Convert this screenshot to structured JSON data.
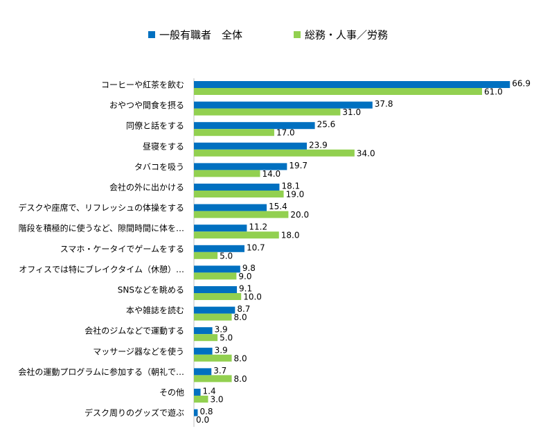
{
  "chart_data": {
    "type": "barh",
    "categories": [
      "コーヒーや紅茶を飲む",
      "おやつや間食を摂る",
      "同僚と話をする",
      "昼寝をする",
      "タバコを吸う",
      "会社の外に出かける",
      "デスクや座席で、リフレッシュの体操をする",
      "階段を積極的に使うなど、隙間時間に体を…",
      "スマホ・ケータイでゲームをする",
      "オフィスでは特にブレイクタイム（休憩）…",
      "SNSなどを眺める",
      "本や雑誌を読む",
      "会社のジムなどで運動する",
      "マッサージ器などを使う",
      "会社の運動プログラムに参加する（朝礼で…",
      "その他",
      "デスク周りのグッズで遊ぶ"
    ],
    "series": [
      {
        "name": "一般有職者　全体",
        "color": "#0070c0",
        "values": [
          66.9,
          37.8,
          25.6,
          23.9,
          19.7,
          18.1,
          15.4,
          11.2,
          10.7,
          9.8,
          9.1,
          8.7,
          3.9,
          3.9,
          3.7,
          1.4,
          0.8
        ],
        "value_labels": [
          "66.9",
          "37.8",
          "25.6",
          "23.9",
          "19.7",
          "18.1",
          "15.4",
          "11.2",
          "10.7",
          "9.8",
          "9.1",
          "8.7",
          "3.9",
          "3.9",
          "3.7",
          "1.4",
          "0.8"
        ]
      },
      {
        "name": "総務・人事／労務",
        "color": "#92d050",
        "values": [
          61,
          31,
          17,
          34,
          14,
          19,
          20,
          18,
          5,
          9,
          10,
          8,
          5,
          8,
          8,
          3,
          0
        ],
        "value_labels": [
          "61.0",
          "31.0",
          "17.0",
          "34.0",
          "14.0",
          "19.0",
          "20.0",
          "18.0",
          "5.0",
          "9.0",
          "10.0",
          "8.0",
          "5.0",
          "8.0",
          "8.0",
          "3.0",
          "0.0"
        ]
      }
    ],
    "xlim": [
      0,
      70
    ]
  }
}
